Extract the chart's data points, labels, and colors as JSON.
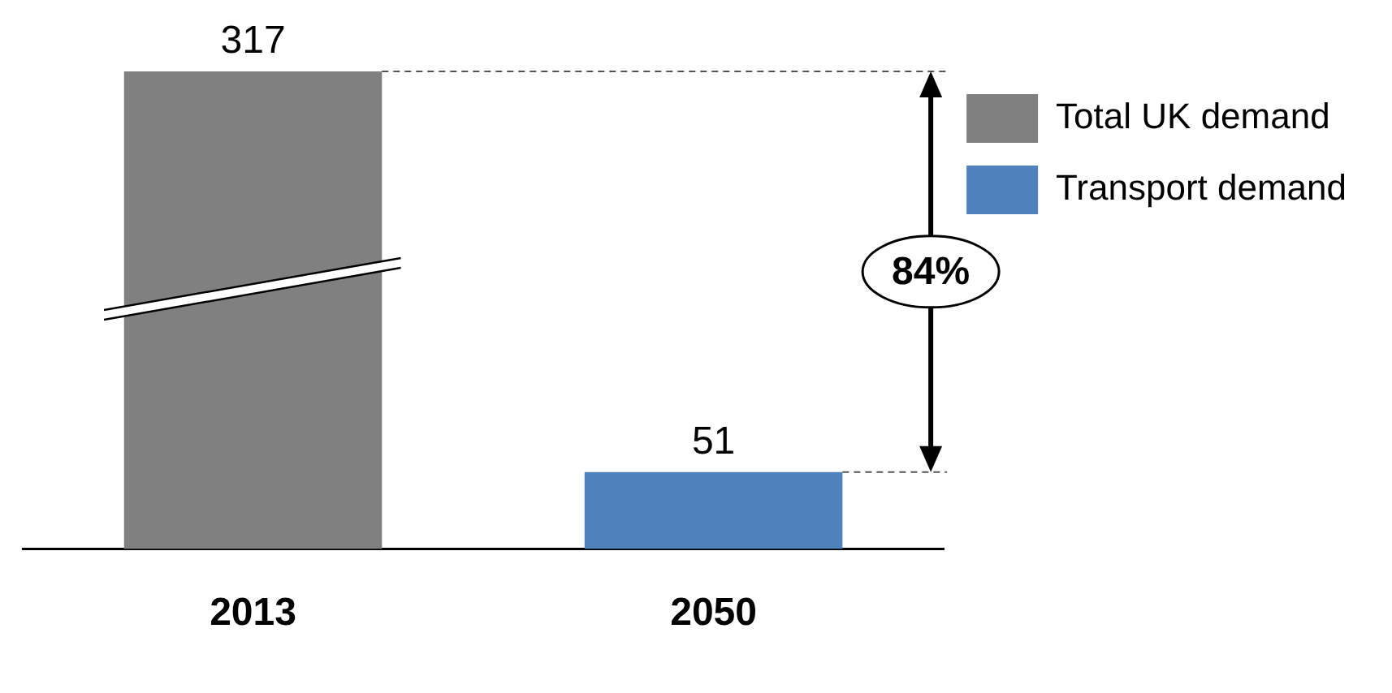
{
  "chart_data": {
    "type": "bar",
    "categories": [
      "2013",
      "2050"
    ],
    "series": [
      {
        "name": "Total UK demand",
        "color": "#808080",
        "values": [
          317,
          null
        ]
      },
      {
        "name": "Transport demand",
        "color": "#4f81bd",
        "values": [
          null,
          51
        ]
      }
    ],
    "data_labels": true,
    "grid": false,
    "legend": "top right",
    "tick_labels": "x",
    "ref_lines": [
      {
        "axis": "y",
        "value": 317,
        "line_style": "dashed"
      },
      {
        "axis": "y",
        "value": 51,
        "line_style": "dashed"
      }
    ],
    "annotations": [
      "84%"
    ]
  }
}
